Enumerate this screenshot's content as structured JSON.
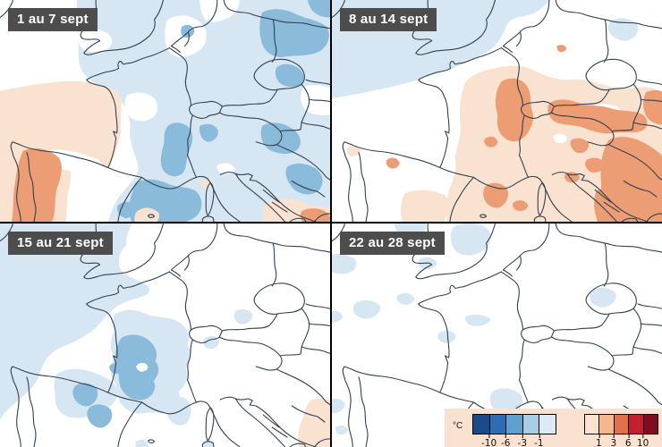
{
  "panels": [
    {
      "label": "1 au 7 sept"
    },
    {
      "label": "8 au 14 sept"
    },
    {
      "label": "15 au 21 sept"
    },
    {
      "label": "22 au 28 sept"
    }
  ],
  "legend": {
    "unit": "°C",
    "cold": {
      "colors": [
        "#1a4a8a",
        "#2e6db4",
        "#5fa0cd",
        "#a8cde4",
        "#ddeaf4"
      ],
      "ticks": [
        "-10",
        "-6",
        "-3",
        "-1"
      ]
    },
    "warm": {
      "colors": [
        "#fbe3d2",
        "#f5b78c",
        "#e2704a",
        "#c41f30",
        "#7e0d20"
      ],
      "ticks": [
        "1",
        "3",
        "6",
        "10"
      ]
    }
  },
  "map_colors": {
    "anomaly_cold_weak": "#d6e7f3",
    "anomaly_cold_moderate": "#8abbda",
    "anomaly_warm_weak": "#fae2d1",
    "anomaly_warm_moderate": "#ec9d73",
    "coastline": "#31414f",
    "panel_label_bg": "#4d4d4d",
    "panel_label_text": "#ffffff",
    "legend_bg": "#fae1d0",
    "divider": "#000000"
  }
}
